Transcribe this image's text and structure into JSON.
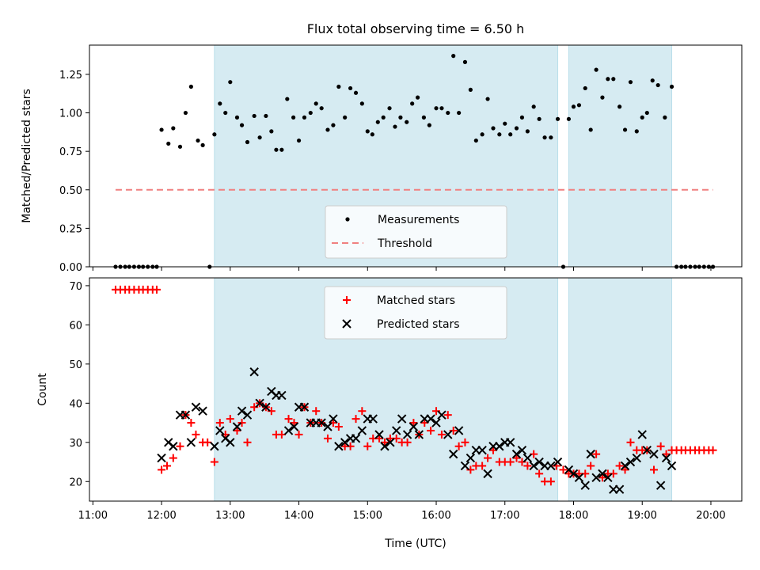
{
  "chart_data": [
    {
      "type": "scatter",
      "title": "Flux total observing time = 6.50 h",
      "xlabel": "",
      "ylabel": "Matched/Predicted stars",
      "xlim": [
        10.95,
        20.45
      ],
      "ylim": [
        0,
        1.44
      ],
      "xticks": [
        "11:00",
        "12:00",
        "13:00",
        "14:00",
        "15:00",
        "16:00",
        "17:00",
        "18:00",
        "19:00",
        "20:00"
      ],
      "yticks": [
        "0.00",
        "0.25",
        "0.50",
        "0.75",
        "1.00",
        "1.25"
      ],
      "shaded_intervals": [
        [
          12.77,
          17.77
        ],
        [
          17.93,
          19.43
        ]
      ],
      "legend_position": "lower-center",
      "series": [
        {
          "name": "Measurements",
          "marker": "dot",
          "color": "#000000",
          "x": [
            11.33,
            11.4,
            11.47,
            11.53,
            11.6,
            11.67,
            11.73,
            11.8,
            11.87,
            11.93,
            12.0,
            12.1,
            12.17,
            12.27,
            12.35,
            12.43,
            12.53,
            12.6,
            12.7,
            12.77,
            12.85,
            12.93,
            13.0,
            13.1,
            13.17,
            13.25,
            13.35,
            13.43,
            13.52,
            13.6,
            13.67,
            13.75,
            13.83,
            13.92,
            14.0,
            14.08,
            14.17,
            14.25,
            14.33,
            14.42,
            14.5,
            14.58,
            14.67,
            14.75,
            14.83,
            14.92,
            15.0,
            15.07,
            15.15,
            15.23,
            15.32,
            15.4,
            15.48,
            15.57,
            15.65,
            15.73,
            15.82,
            15.9,
            16.0,
            16.08,
            16.17,
            16.25,
            16.33,
            16.42,
            16.5,
            16.58,
            16.67,
            16.75,
            16.83,
            16.92,
            17.0,
            17.08,
            17.17,
            17.25,
            17.33,
            17.42,
            17.5,
            17.58,
            17.67,
            17.77,
            17.85,
            17.93,
            18.0,
            18.08,
            18.17,
            18.25,
            18.33,
            18.42,
            18.5,
            18.58,
            18.67,
            18.75,
            18.83,
            18.92,
            19.0,
            19.07,
            19.15,
            19.23,
            19.33,
            19.43,
            19.5,
            19.57,
            19.63,
            19.7,
            19.77,
            19.83,
            19.9,
            19.97,
            20.03
          ],
          "y": [
            0.0,
            0.0,
            0.0,
            0.0,
            0.0,
            0.0,
            0.0,
            0.0,
            0.0,
            0.0,
            0.89,
            0.8,
            0.9,
            0.78,
            1.0,
            1.17,
            0.82,
            0.79,
            0.0,
            0.86,
            1.06,
            1.0,
            1.2,
            0.97,
            0.92,
            0.81,
            0.98,
            0.84,
            0.98,
            0.88,
            0.76,
            0.76,
            1.09,
            0.97,
            0.82,
            0.97,
            1.0,
            1.06,
            1.03,
            0.89,
            0.92,
            1.17,
            0.97,
            1.16,
            1.13,
            1.06,
            0.88,
            0.86,
            0.94,
            0.97,
            1.03,
            0.91,
            0.97,
            0.94,
            1.06,
            1.1,
            0.97,
            0.92,
            1.03,
            1.03,
            1.0,
            1.37,
            1.0,
            1.33,
            1.15,
            0.82,
            0.86,
            1.09,
            0.9,
            0.86,
            0.93,
            0.86,
            0.9,
            0.97,
            0.88,
            1.04,
            0.96,
            0.84,
            0.84,
            0.96,
            0.0,
            0.96,
            1.04,
            1.05,
            1.16,
            0.89,
            1.28,
            1.1,
            1.22,
            1.22,
            1.04,
            0.89,
            1.2,
            0.88,
            0.97,
            1.0,
            1.21,
            1.18,
            0.97,
            1.17,
            0.0,
            0.0,
            0.0,
            0.0,
            0.0,
            0.0,
            0.0,
            0.0,
            0.0
          ]
        },
        {
          "name": "Threshold",
          "marker": "dashed-line",
          "color": "#f08080",
          "x": [
            11.33,
            20.03
          ],
          "y": [
            0.5,
            0.5
          ]
        }
      ]
    },
    {
      "type": "scatter",
      "title": "",
      "xlabel": "Time (UTC)",
      "ylabel": "Count",
      "xlim": [
        10.95,
        20.45
      ],
      "ylim": [
        15,
        72
      ],
      "xticks": [
        "11:00",
        "12:00",
        "13:00",
        "14:00",
        "15:00",
        "16:00",
        "17:00",
        "18:00",
        "19:00",
        "20:00"
      ],
      "yticks": [
        "20",
        "30",
        "40",
        "50",
        "60",
        "70"
      ],
      "shaded_intervals": [
        [
          12.77,
          17.77
        ],
        [
          17.93,
          19.43
        ]
      ],
      "legend_position": "top-center",
      "series": [
        {
          "name": "Matched stars",
          "marker": "plus",
          "color": "#ff0000",
          "x": [
            11.33,
            11.4,
            11.47,
            11.53,
            11.6,
            11.67,
            11.73,
            11.8,
            11.87,
            11.93,
            12.0,
            12.08,
            12.17,
            12.27,
            12.35,
            12.43,
            12.5,
            12.6,
            12.67,
            12.77,
            12.85,
            12.93,
            13.0,
            13.1,
            13.17,
            13.25,
            13.35,
            13.43,
            13.52,
            13.6,
            13.67,
            13.75,
            13.85,
            13.93,
            14.0,
            14.08,
            14.17,
            14.25,
            14.33,
            14.42,
            14.5,
            14.58,
            14.67,
            14.75,
            14.83,
            14.92,
            15.0,
            15.08,
            15.17,
            15.25,
            15.33,
            15.42,
            15.5,
            15.58,
            15.67,
            15.75,
            15.83,
            15.92,
            16.0,
            16.08,
            16.17,
            16.25,
            16.33,
            16.42,
            16.5,
            16.58,
            16.67,
            16.75,
            16.83,
            16.92,
            17.0,
            17.08,
            17.17,
            17.25,
            17.33,
            17.42,
            17.5,
            17.58,
            17.67,
            17.75,
            17.85,
            17.93,
            18.0,
            18.08,
            18.17,
            18.25,
            18.33,
            18.42,
            18.5,
            18.58,
            18.67,
            18.75,
            18.83,
            18.92,
            19.0,
            19.07,
            19.17,
            19.27,
            19.35,
            19.43,
            19.5,
            19.57,
            19.63,
            19.7,
            19.77,
            19.83,
            19.9,
            19.97,
            20.03
          ],
          "y": [
            69,
            69,
            69,
            69,
            69,
            69,
            69,
            69,
            69,
            69,
            23,
            24,
            26,
            29,
            37,
            35,
            32,
            30,
            30,
            25,
            35,
            32,
            36,
            33,
            35,
            30,
            39,
            40,
            39,
            38,
            32,
            32,
            36,
            35,
            32,
            39,
            35,
            38,
            35,
            31,
            35,
            34,
            29,
            29,
            36,
            38,
            29,
            31,
            31,
            30,
            31,
            31,
            30,
            30,
            35,
            32,
            35,
            33,
            38,
            32,
            37,
            33,
            29,
            30,
            23,
            24,
            24,
            26,
            28,
            25,
            25,
            25,
            26,
            25,
            24,
            27,
            22,
            20,
            20,
            24,
            23,
            22,
            22,
            22,
            22,
            24,
            27,
            21,
            22,
            22,
            24,
            23,
            30,
            28,
            28,
            28,
            23,
            29,
            27,
            28,
            28,
            28,
            28,
            28,
            28,
            28,
            28,
            28,
            28
          ]
        },
        {
          "name": "Predicted stars",
          "marker": "x",
          "color": "#000000",
          "x": [
            12.0,
            12.1,
            12.17,
            12.27,
            12.35,
            12.43,
            12.5,
            12.6,
            12.77,
            12.85,
            12.93,
            13.0,
            13.1,
            13.17,
            13.25,
            13.35,
            13.43,
            13.52,
            13.6,
            13.67,
            13.75,
            13.85,
            13.93,
            14.0,
            14.08,
            14.17,
            14.25,
            14.33,
            14.42,
            14.5,
            14.58,
            14.67,
            14.75,
            14.83,
            14.92,
            15.0,
            15.08,
            15.17,
            15.25,
            15.33,
            15.42,
            15.5,
            15.58,
            15.67,
            15.75,
            15.83,
            15.92,
            16.0,
            16.08,
            16.17,
            16.25,
            16.33,
            16.42,
            16.5,
            16.58,
            16.67,
            16.75,
            16.83,
            16.92,
            17.0,
            17.08,
            17.17,
            17.25,
            17.33,
            17.42,
            17.5,
            17.58,
            17.67,
            17.77,
            17.93,
            18.0,
            18.08,
            18.17,
            18.25,
            18.33,
            18.42,
            18.5,
            18.58,
            18.67,
            18.75,
            18.83,
            18.92,
            19.0,
            19.07,
            19.17,
            19.27,
            19.35,
            19.43
          ],
          "y": [
            26,
            30,
            29,
            37,
            37,
            30,
            39,
            38,
            29,
            33,
            31,
            30,
            34,
            38,
            37,
            48,
            40,
            39,
            43,
            42,
            42,
            33,
            34,
            39,
            39,
            35,
            35,
            35,
            34,
            36,
            29,
            30,
            31,
            31,
            33,
            36,
            36,
            32,
            29,
            30,
            33,
            36,
            32,
            34,
            32,
            36,
            36,
            35,
            37,
            32,
            27,
            33,
            24,
            26,
            28,
            28,
            22,
            29,
            29,
            30,
            30,
            27,
            28,
            26,
            24,
            25,
            24,
            24,
            25,
            23,
            22,
            21,
            19,
            27,
            21,
            22,
            21,
            18,
            18,
            24,
            25,
            26,
            32,
            28,
            27,
            19,
            26,
            24
          ]
        }
      ]
    }
  ]
}
